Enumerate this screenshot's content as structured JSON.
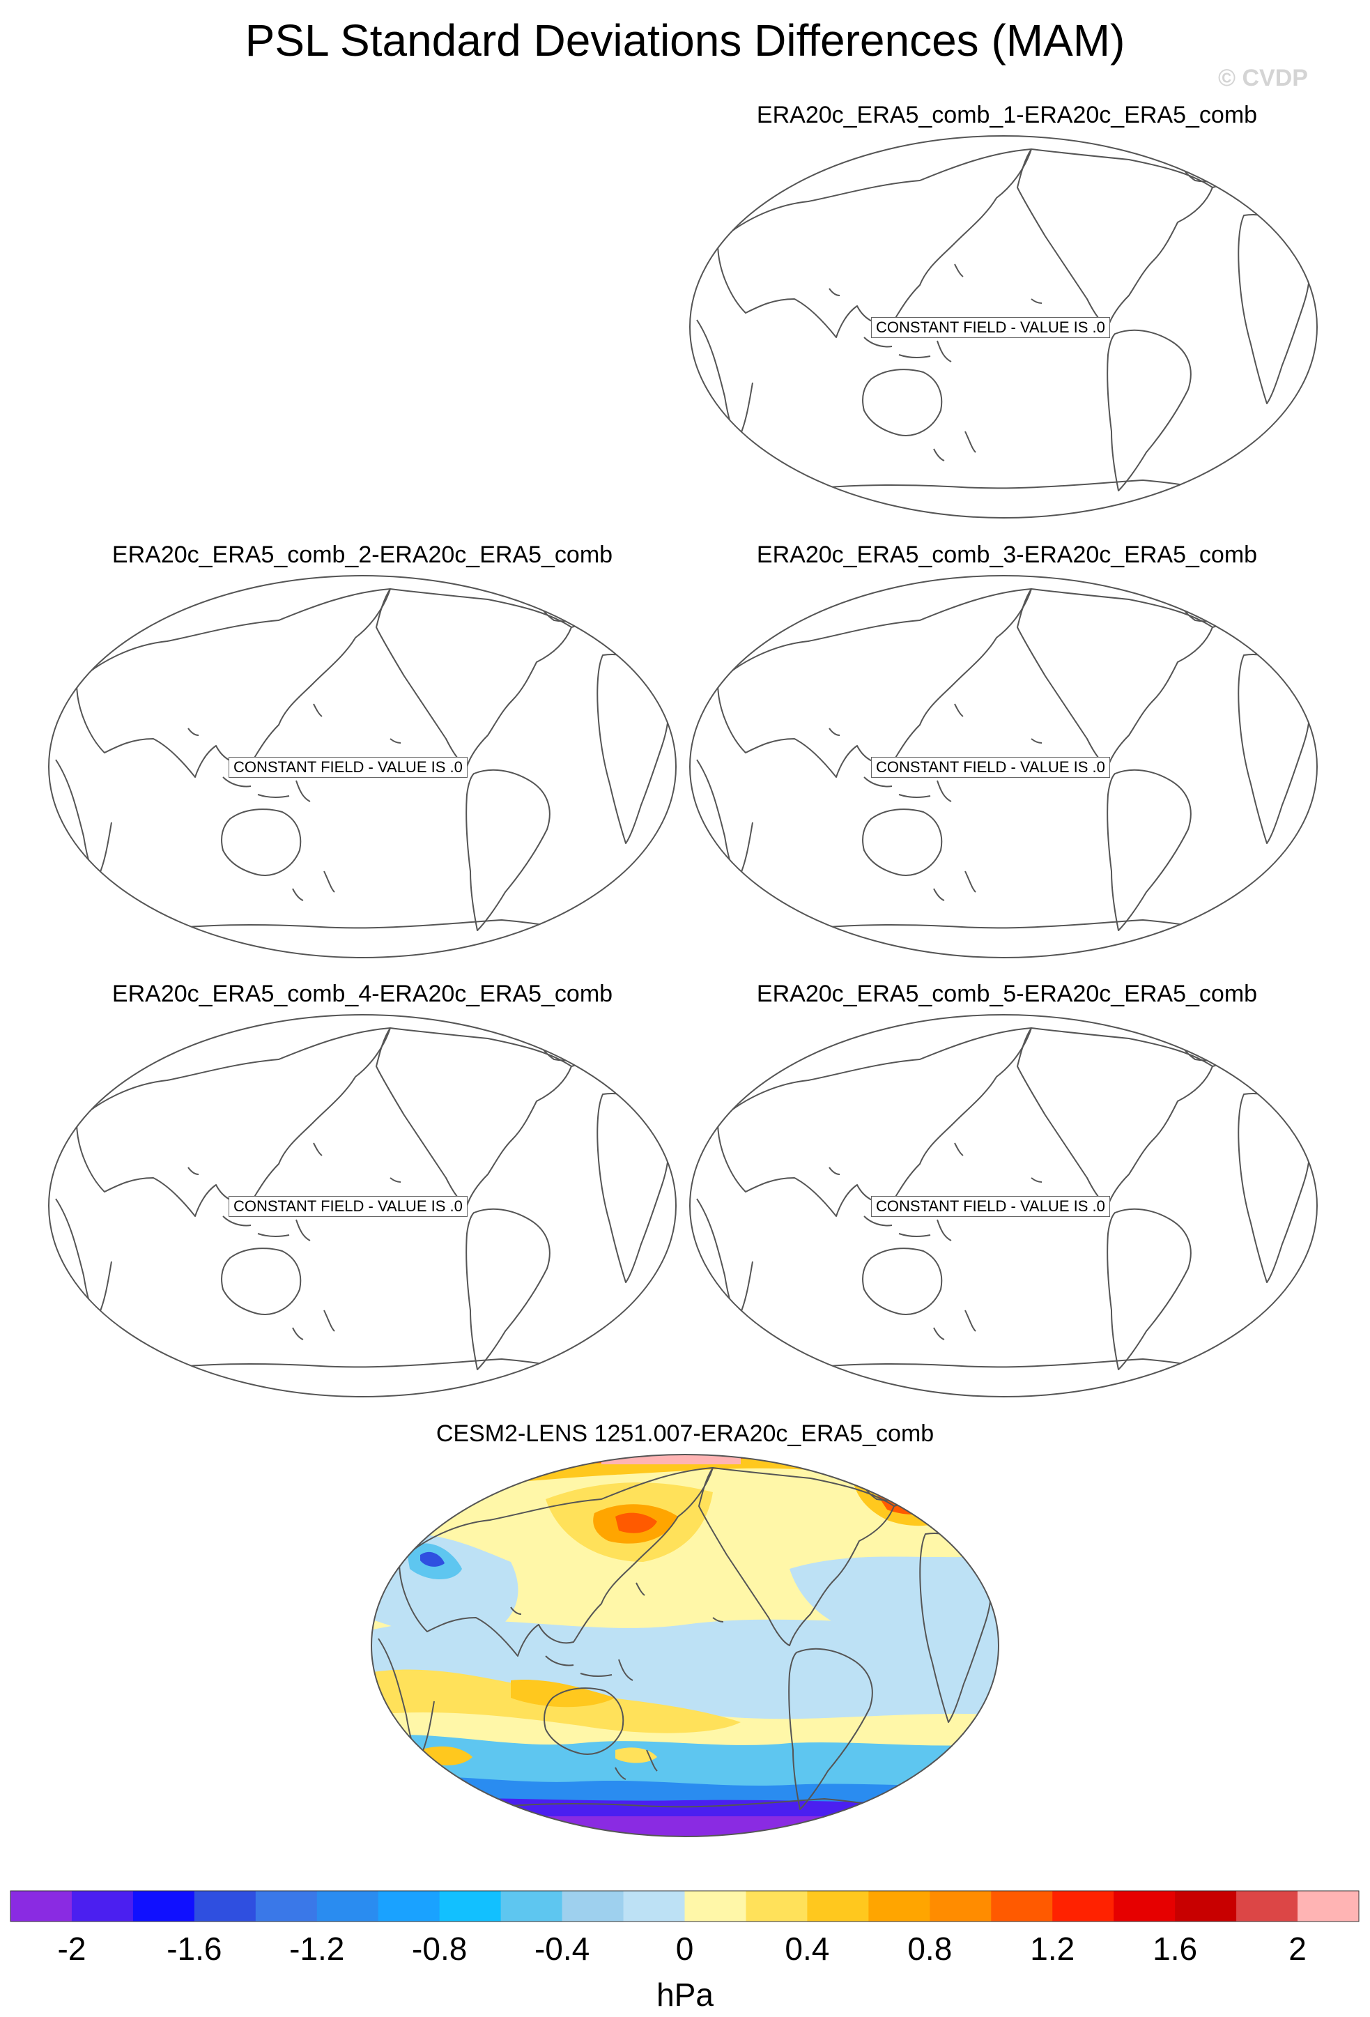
{
  "title": "PSL Standard Deviations Differences (MAM)",
  "watermark": "© CVDP",
  "panels": [
    {
      "label": "ERA20c_ERA5_comb_1-ERA20c_ERA5_comb",
      "note": "CONSTANT FIELD - VALUE IS .0"
    },
    {
      "label": "ERA20c_ERA5_comb_2-ERA20c_ERA5_comb",
      "note": "CONSTANT FIELD - VALUE IS .0"
    },
    {
      "label": "ERA20c_ERA5_comb_3-ERA20c_ERA5_comb",
      "note": "CONSTANT FIELD - VALUE IS .0"
    },
    {
      "label": "ERA20c_ERA5_comb_4-ERA20c_ERA5_comb",
      "note": "CONSTANT FIELD - VALUE IS .0"
    },
    {
      "label": "ERA20c_ERA5_comb_5-ERA20c_ERA5_comb",
      "note": "CONSTANT FIELD - VALUE IS .0"
    },
    {
      "label": "CESM2-LENS 1251.007-ERA20c_ERA5_comb",
      "note": ""
    }
  ],
  "colorbar": {
    "unit": "hPa",
    "tick_labels": [
      "-2",
      "-1.6",
      "-1.2",
      "-0.8",
      "-0.4",
      "0",
      "0.4",
      "0.8",
      "1.2",
      "1.6",
      "2"
    ],
    "colors": [
      "#8a2be2",
      "#4b1ff0",
      "#1010ff",
      "#2f4fe0",
      "#3a78e8",
      "#2a8cf0",
      "#1aa2ff",
      "#12c0ff",
      "#5ec6f0",
      "#9ed0ee",
      "#bde1f5",
      "#fff7a8",
      "#ffe15a",
      "#ffc81e",
      "#ffa500",
      "#ff8c00",
      "#ff5a00",
      "#ff2200",
      "#e60000",
      "#c80000",
      "#dc4646",
      "#ffb4b4"
    ]
  }
}
